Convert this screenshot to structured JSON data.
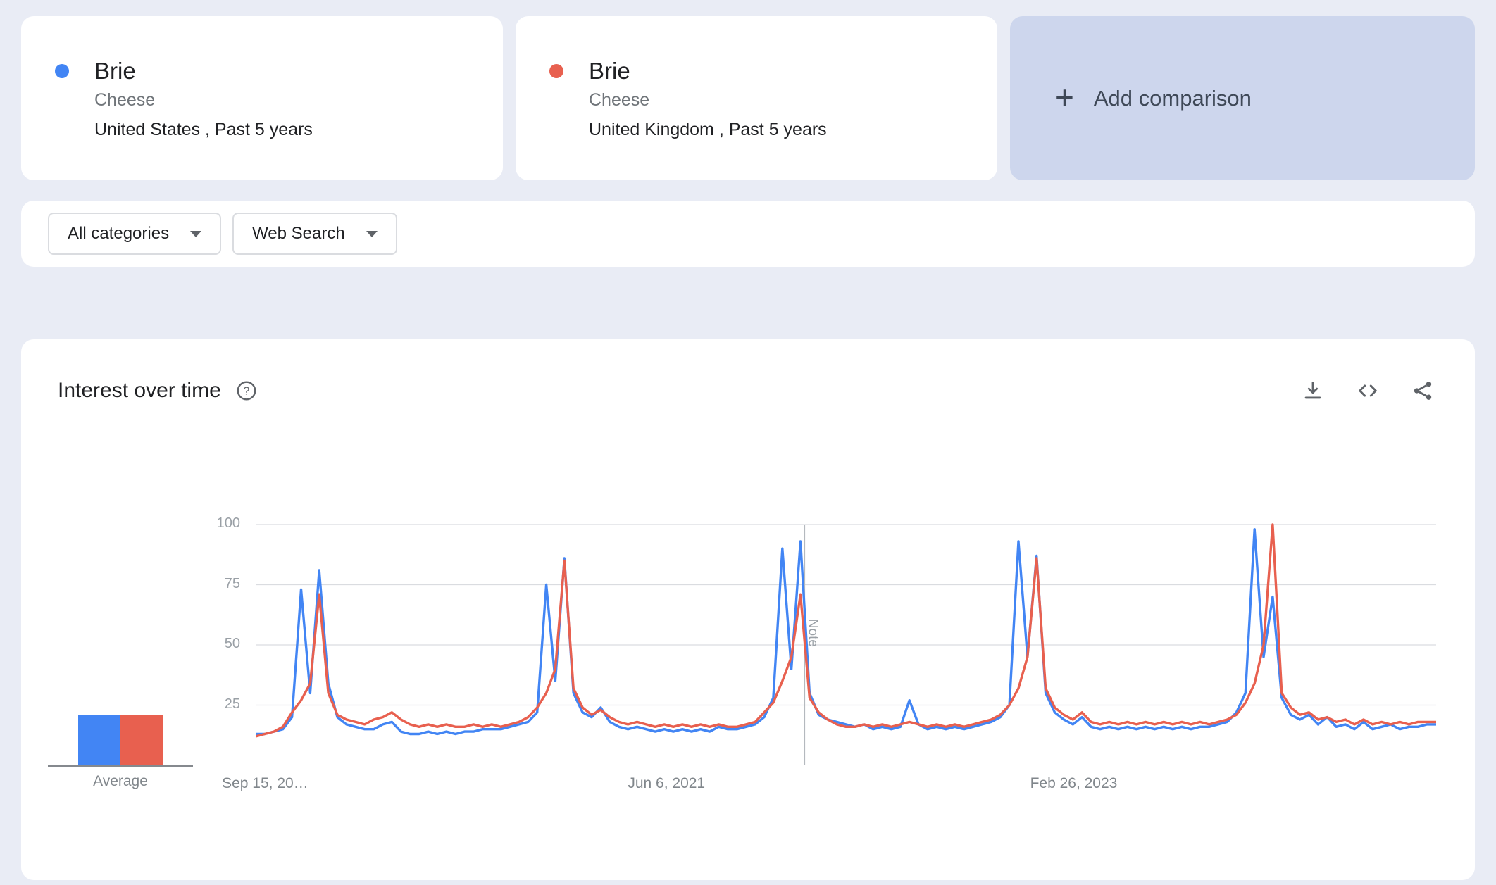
{
  "comparison_bar": {
    "cards": [
      {
        "term": "Brie",
        "topic": "Cheese",
        "scope": "United States , Past 5 years",
        "color": "#4285f4"
      },
      {
        "term": "Brie",
        "topic": "Cheese",
        "scope": "United Kingdom , Past 5 years",
        "color": "#e8604f"
      }
    ],
    "add_button": {
      "label": "Add comparison"
    }
  },
  "filter_bar": {
    "category_filter": "All categories",
    "search_type_filter": "Web Search"
  },
  "interest_card": {
    "title": "Interest over time"
  },
  "icons": {
    "help_glyph": "?",
    "plus_glyph": "+",
    "download": "download-icon",
    "embed": "embed-code-icon",
    "share": "share-icon",
    "dropdown_caret": "chevron-down-icon"
  },
  "chart_data": {
    "type": "line",
    "title": "Interest over time",
    "ylim": [
      0,
      100
    ],
    "yticks": [
      25,
      50,
      75,
      100
    ],
    "xtick_labels": [
      "Sep 15, 20…",
      "Jun 6, 2021",
      "Feb 26, 2023"
    ],
    "xtick_positions": [
      0.008,
      0.348,
      0.693
    ],
    "note_position": 0.465,
    "note_label": "Note",
    "average_label": "Average",
    "average_values": [
      21,
      21
    ],
    "grid": true,
    "legend": "none",
    "series": [
      {
        "name": "Brie · United States",
        "color": "#4285f4",
        "values": [
          13,
          13,
          14,
          15,
          20,
          73,
          30,
          81,
          34,
          20,
          17,
          16,
          15,
          15,
          17,
          18,
          14,
          13,
          13,
          14,
          13,
          14,
          13,
          14,
          14,
          15,
          15,
          15,
          16,
          17,
          18,
          22,
          75,
          35,
          86,
          30,
          22,
          20,
          24,
          18,
          16,
          15,
          16,
          15,
          14,
          15,
          14,
          15,
          14,
          15,
          14,
          16,
          15,
          15,
          16,
          17,
          20,
          28,
          90,
          40,
          93,
          30,
          21,
          19,
          18,
          17,
          16,
          17,
          15,
          16,
          15,
          16,
          27,
          17,
          15,
          16,
          15,
          16,
          15,
          16,
          17,
          18,
          20,
          25,
          93,
          45,
          87,
          30,
          22,
          19,
          17,
          20,
          16,
          15,
          16,
          15,
          16,
          15,
          16,
          15,
          16,
          15,
          16,
          15,
          16,
          16,
          17,
          18,
          22,
          30,
          98,
          45,
          70,
          28,
          21,
          19,
          21,
          17,
          20,
          16,
          17,
          15,
          18,
          15,
          16,
          17,
          15,
          16,
          16,
          17,
          17
        ]
      },
      {
        "name": "Brie · United Kingdom",
        "color": "#e8604f",
        "values": [
          12,
          13,
          14,
          16,
          22,
          27,
          34,
          71,
          30,
          21,
          19,
          18,
          17,
          19,
          20,
          22,
          19,
          17,
          16,
          17,
          16,
          17,
          16,
          16,
          17,
          16,
          17,
          16,
          17,
          18,
          20,
          24,
          30,
          40,
          85,
          32,
          24,
          21,
          23,
          20,
          18,
          17,
          18,
          17,
          16,
          17,
          16,
          17,
          16,
          17,
          16,
          17,
          16,
          16,
          17,
          18,
          22,
          26,
          35,
          45,
          71,
          28,
          22,
          19,
          17,
          16,
          16,
          17,
          16,
          17,
          16,
          17,
          18,
          17,
          16,
          17,
          16,
          17,
          16,
          17,
          18,
          19,
          21,
          25,
          32,
          45,
          86,
          32,
          24,
          21,
          19,
          22,
          18,
          17,
          18,
          17,
          18,
          17,
          18,
          17,
          18,
          17,
          18,
          17,
          18,
          17,
          18,
          19,
          21,
          26,
          34,
          50,
          100,
          30,
          24,
          21,
          22,
          19,
          20,
          18,
          19,
          17,
          19,
          17,
          18,
          17,
          18,
          17,
          18,
          18,
          18
        ]
      }
    ]
  }
}
